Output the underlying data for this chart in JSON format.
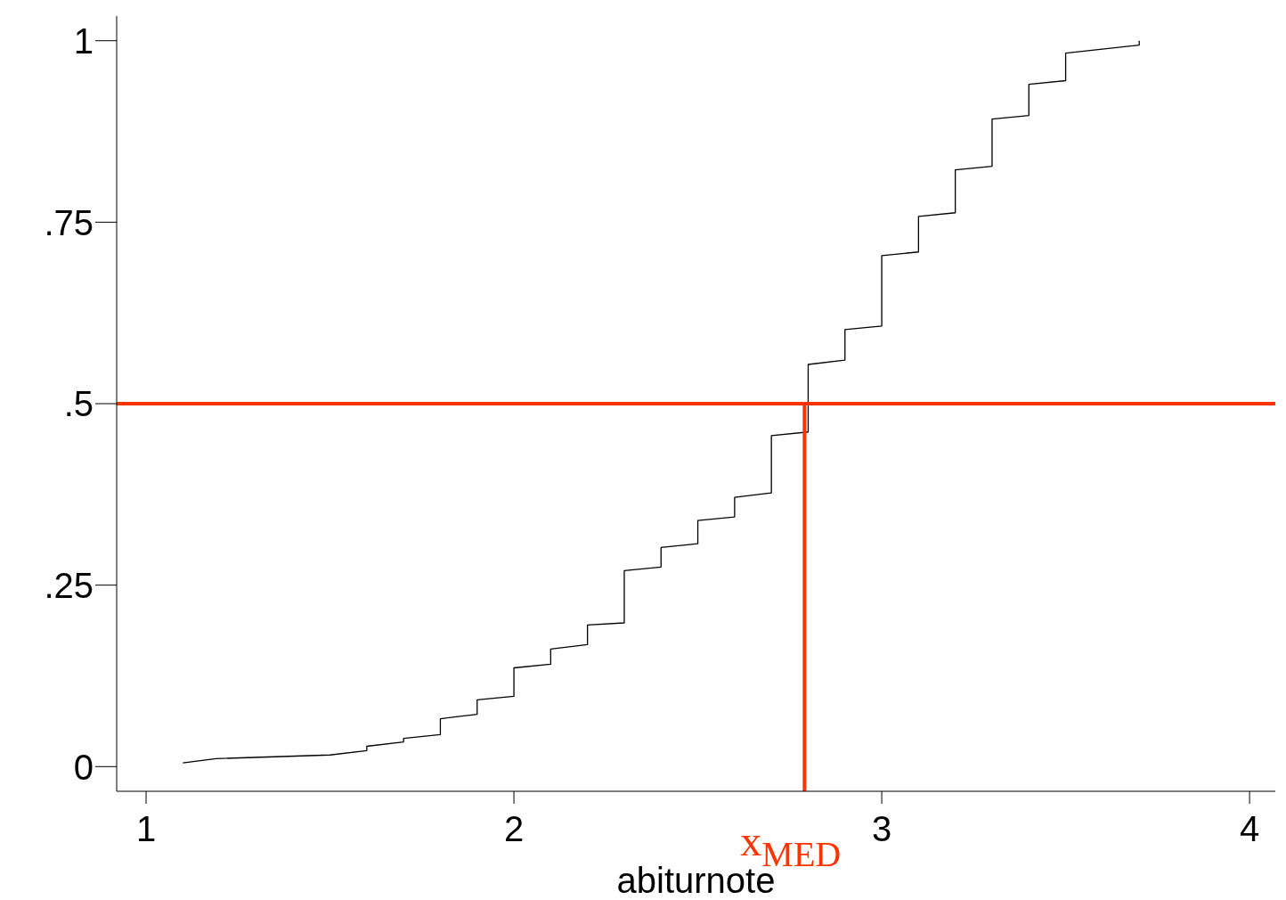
{
  "chart_data": {
    "type": "line",
    "xlabel": "abiturnote",
    "x": [
      1.1,
      1.19,
      1.5,
      1.6,
      1.6,
      1.7,
      1.7,
      1.8,
      1.8,
      1.9,
      1.9,
      2.0,
      2.0,
      2.1,
      2.1,
      2.2,
      2.2,
      2.3,
      2.3,
      2.4,
      2.4,
      2.5,
      2.5,
      2.6,
      2.6,
      2.7,
      2.7,
      2.8,
      2.8,
      2.9,
      2.9,
      3.0,
      3.0,
      3.1,
      3.1,
      3.2,
      3.2,
      3.3,
      3.3,
      3.4,
      3.4,
      3.5,
      3.5,
      3.7,
      3.7
    ],
    "series": [
      {
        "color": "#000000",
        "values": [
          0.005,
          0.011,
          0.016,
          0.022,
          0.028,
          0.034,
          0.039,
          0.044,
          0.066,
          0.072,
          0.092,
          0.097,
          0.136,
          0.141,
          0.162,
          0.168,
          0.195,
          0.198,
          0.27,
          0.275,
          0.302,
          0.307,
          0.339,
          0.344,
          0.371,
          0.377,
          0.456,
          0.461,
          0.554,
          0.56,
          0.602,
          0.607,
          0.704,
          0.709,
          0.758,
          0.763,
          0.822,
          0.827,
          0.892,
          0.897,
          0.94,
          0.945,
          0.983,
          0.994,
          1.0
        ]
      }
    ],
    "xlim": [
      0.92,
      4.07
    ],
    "ylim": [
      -0.034,
      1.034
    ],
    "xticks": [
      1,
      2,
      3,
      4
    ],
    "yticks": [
      0,
      {
        "value": 0.25,
        "label": ".25"
      },
      {
        "value": 0.5,
        "label": ".5"
      },
      {
        "value": 0.75,
        "label": ".75"
      },
      1
    ],
    "ref_lines": [
      {
        "axis": "y",
        "value": 0.5,
        "color": "#ff3300"
      },
      {
        "axis": "x",
        "value": 2.79,
        "label": "x$_{MED}$",
        "color": "#ff3300"
      }
    ],
    "grid": false,
    "legend": false,
    "marker": "none",
    "line_style": "solid"
  }
}
